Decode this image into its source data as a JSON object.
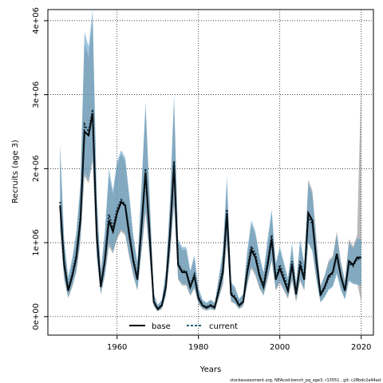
{
  "chart_data": {
    "type": "line",
    "xlabel": "Years",
    "ylabel": "Recruits (age 3)",
    "xlim": [
      1943,
      2023
    ],
    "ylim": [
      -250000,
      4150000
    ],
    "x_ticks": [
      1960,
      1980,
      2000,
      2020
    ],
    "x_tick_labels": [
      "1960",
      "1980",
      "2000",
      "2020"
    ],
    "y_ticks": [
      0,
      1000000,
      2000000,
      3000000,
      4000000
    ],
    "y_tick_labels": [
      "0e+00",
      "1e+06",
      "2e+06",
      "3e+06",
      "4e+06"
    ],
    "grid": true,
    "legend_position": "bottom-left",
    "footer": "stockassessment.org, NEAcod-bench_pg_age3, r13551 , git: c28bdc2a44ad",
    "years": [
      1946,
      1947,
      1948,
      1949,
      1950,
      1951,
      1952,
      1953,
      1954,
      1955,
      1956,
      1957,
      1958,
      1959,
      1960,
      1961,
      1962,
      1963,
      1964,
      1965,
      1966,
      1967,
      1968,
      1969,
      1970,
      1971,
      1972,
      1973,
      1974,
      1975,
      1976,
      1977,
      1978,
      1979,
      1980,
      1981,
      1982,
      1983,
      1984,
      1985,
      1986,
      1987,
      1988,
      1989,
      1990,
      1991,
      1992,
      1993,
      1994,
      1995,
      1996,
      1997,
      1998,
      1999,
      2000,
      2001,
      2002,
      2003,
      2004,
      2005,
      2006,
      2007,
      2008,
      2009,
      2010,
      2011,
      2012,
      2013,
      2014,
      2015,
      2016,
      2017,
      2018,
      2019,
      2020
    ],
    "series": [
      {
        "name": "base",
        "color": "#000000",
        "band_color": "#808080",
        "values": [
          1500000,
          700000,
          350000,
          550000,
          800000,
          1300000,
          2500000,
          2450000,
          2750000,
          1100000,
          400000,
          750000,
          1300000,
          1150000,
          1400000,
          1550000,
          1500000,
          1100000,
          750000,
          500000,
          1200000,
          1950000,
          1100000,
          200000,
          100000,
          150000,
          400000,
          1100000,
          2050000,
          700000,
          600000,
          600000,
          400000,
          550000,
          250000,
          150000,
          120000,
          150000,
          120000,
          350000,
          600000,
          1400000,
          300000,
          250000,
          150000,
          200000,
          600000,
          900000,
          800000,
          550000,
          400000,
          700000,
          1050000,
          500000,
          650000,
          500000,
          350000,
          700000,
          300000,
          700000,
          500000,
          1400000,
          1300000,
          750000,
          300000,
          400000,
          550000,
          600000,
          850000,
          550000,
          350000,
          750000,
          700000,
          800000,
          800000
        ],
        "lower": [
          1150000,
          500000,
          250000,
          400000,
          600000,
          1000000,
          1900000,
          1800000,
          2100000,
          800000,
          300000,
          550000,
          950000,
          850000,
          1050000,
          1150000,
          1100000,
          800000,
          550000,
          350000,
          850000,
          1400000,
          800000,
          140000,
          70000,
          100000,
          280000,
          800000,
          1500000,
          500000,
          420000,
          420000,
          280000,
          380000,
          170000,
          100000,
          80000,
          100000,
          80000,
          250000,
          420000,
          1000000,
          200000,
          170000,
          100000,
          140000,
          420000,
          650000,
          550000,
          380000,
          280000,
          500000,
          750000,
          350000,
          450000,
          350000,
          240000,
          480000,
          200000,
          480000,
          350000,
          1000000,
          900000,
          500000,
          200000,
          270000,
          380000,
          420000,
          600000,
          380000,
          240000,
          500000,
          450000,
          450000,
          200000
        ],
        "upper": [
          2300000,
          1000000,
          500000,
          750000,
          1100000,
          1750000,
          3700000,
          3500000,
          4000000,
          1600000,
          600000,
          1100000,
          1900000,
          1650000,
          2050000,
          2200000,
          2100000,
          1600000,
          1050000,
          700000,
          1700000,
          2800000,
          1600000,
          300000,
          150000,
          220000,
          600000,
          1500000,
          2900000,
          1000000,
          900000,
          900000,
          600000,
          800000,
          370000,
          220000,
          180000,
          220000,
          180000,
          500000,
          850000,
          1800000,
          450000,
          380000,
          230000,
          300000,
          850000,
          1250000,
          1100000,
          800000,
          580000,
          1000000,
          1400000,
          700000,
          900000,
          700000,
          500000,
          950000,
          430000,
          1000000,
          700000,
          1850000,
          1700000,
          1050000,
          420000,
          560000,
          760000,
          820000,
          1150000,
          750000,
          490000,
          1050000,
          950000,
          1100000,
          3200000
        ]
      },
      {
        "name": "current",
        "color": "#1f5d7a",
        "band_color": "#5d9fc4",
        "values": [
          1550000,
          750000,
          380000,
          580000,
          850000,
          1350000,
          2600000,
          2500000,
          2800000,
          1150000,
          420000,
          780000,
          1380000,
          1200000,
          1450000,
          1580000,
          1520000,
          1150000,
          780000,
          520000,
          1250000,
          2000000,
          1150000,
          210000,
          110000,
          160000,
          420000,
          1150000,
          2100000,
          720000,
          620000,
          620000,
          420000,
          570000,
          270000,
          160000,
          130000,
          160000,
          130000,
          380000,
          650000,
          1450000,
          320000,
          270000,
          160000,
          210000,
          650000,
          950000,
          850000,
          580000,
          430000,
          750000,
          1100000,
          520000,
          700000,
          550000,
          380000,
          750000,
          320000,
          750000,
          520000,
          1350000,
          1250000,
          720000,
          280000,
          380000,
          520000,
          580000,
          820000,
          530000,
          340000,
          720000,
          680000,
          780000,
          780000
        ],
        "lower": [
          1200000,
          520000,
          260000,
          420000,
          620000,
          1050000,
          1950000,
          1850000,
          2150000,
          830000,
          310000,
          570000,
          1000000,
          880000,
          1080000,
          1180000,
          1130000,
          830000,
          570000,
          360000,
          880000,
          1450000,
          830000,
          150000,
          75000,
          110000,
          290000,
          830000,
          1550000,
          520000,
          440000,
          440000,
          290000,
          400000,
          180000,
          110000,
          90000,
          110000,
          90000,
          260000,
          450000,
          1050000,
          220000,
          180000,
          110000,
          150000,
          450000,
          680000,
          590000,
          400000,
          300000,
          520000,
          780000,
          370000,
          480000,
          380000,
          260000,
          510000,
          220000,
          510000,
          370000,
          1000000,
          880000,
          490000,
          190000,
          260000,
          360000,
          400000,
          570000,
          360000,
          230000,
          480000,
          440000,
          430000,
          430000
        ],
        "upper": [
          2350000,
          1050000,
          540000,
          800000,
          1150000,
          1800000,
          3850000,
          3650000,
          4150000,
          1650000,
          620000,
          1150000,
          2000000,
          1700000,
          2100000,
          2250000,
          2150000,
          1650000,
          1100000,
          740000,
          1780000,
          2900000,
          1650000,
          320000,
          160000,
          230000,
          620000,
          1550000,
          3000000,
          1050000,
          940000,
          940000,
          620000,
          830000,
          390000,
          230000,
          190000,
          230000,
          190000,
          530000,
          900000,
          1900000,
          470000,
          400000,
          240000,
          310000,
          900000,
          1300000,
          1150000,
          830000,
          600000,
          1050000,
          1450000,
          720000,
          950000,
          740000,
          520000,
          1000000,
          450000,
          1050000,
          720000,
          1800000,
          1650000,
          1000000,
          400000,
          540000,
          730000,
          790000,
          1100000,
          720000,
          470000,
          1000000,
          920000,
          1050000,
          1050000
        ]
      }
    ]
  }
}
